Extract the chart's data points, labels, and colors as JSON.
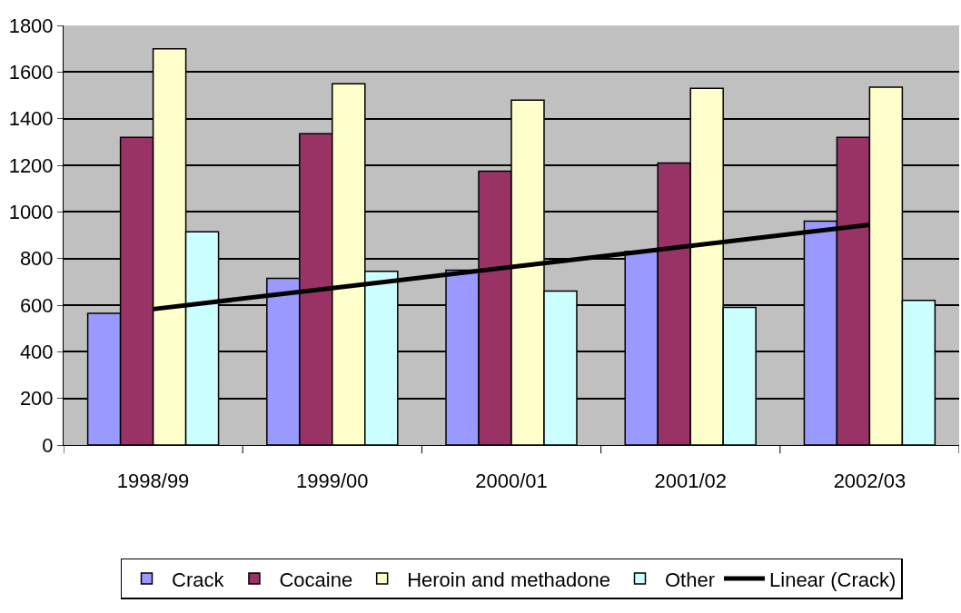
{
  "chart_data": {
    "type": "bar",
    "categories": [
      "1998/99",
      "1999/00",
      "2000/01",
      "2001/02",
      "2002/03"
    ],
    "series": [
      {
        "name": "Crack",
        "color": "#9999ff",
        "values": [
          565,
          715,
          750,
          830,
          960
        ]
      },
      {
        "name": "Cocaine",
        "color": "#993366",
        "values": [
          1320,
          1335,
          1175,
          1210,
          1320
        ]
      },
      {
        "name": "Heroin and methadone",
        "color": "#ffffcc",
        "values": [
          1700,
          1550,
          1480,
          1530,
          1535
        ]
      },
      {
        "name": "Other",
        "color": "#ccffff",
        "values": [
          915,
          745,
          660,
          590,
          620
        ]
      },
      {
        "name": "Linear (Crack)",
        "type": "line",
        "color": "#000000",
        "values": [
          583,
          673,
          764,
          854,
          945
        ]
      }
    ],
    "ylim": [
      0,
      1800
    ],
    "yticks": [
      0,
      200,
      400,
      600,
      800,
      1000,
      1200,
      1400,
      1600,
      1800
    ],
    "grid": "y",
    "legend": "bottom",
    "marker": "none",
    "line_style": "solid"
  }
}
